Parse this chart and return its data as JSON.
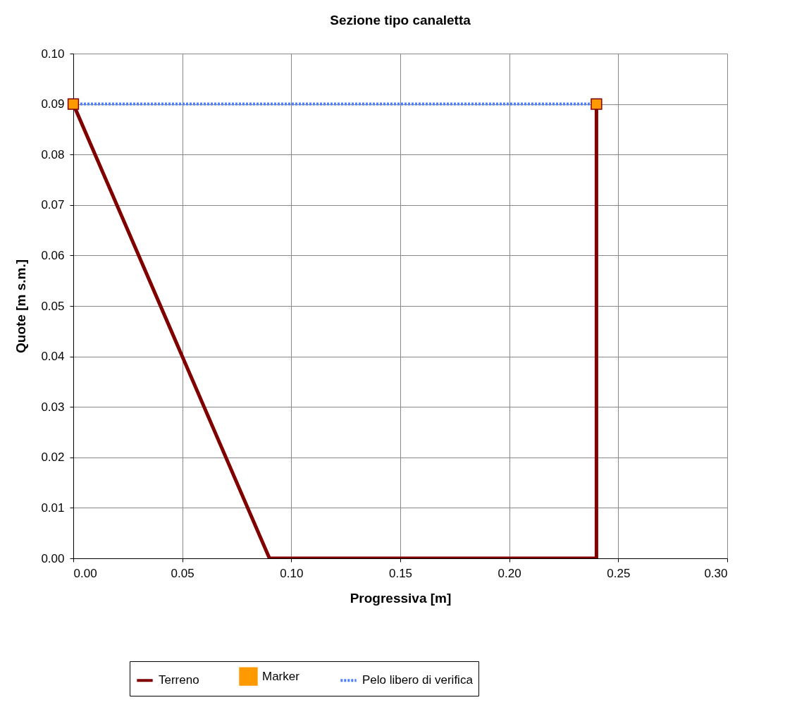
{
  "chart_data": {
    "type": "line",
    "title": "Sezione tipo canaletta",
    "xlabel": "Progressiva [m]",
    "ylabel": "Quote [m s.m.]",
    "xlim": [
      0,
      0.3
    ],
    "xticks": [
      {
        "value": 0,
        "label": "0.00"
      },
      {
        "value": 0.05,
        "label": "0.05"
      },
      {
        "value": 0.1,
        "label": "0.10"
      },
      {
        "value": 0.15,
        "label": "0.15"
      },
      {
        "value": 0.2,
        "label": "0.20"
      },
      {
        "value": 0.25,
        "label": "0.25"
      },
      {
        "value": 0.3,
        "label": "0.30"
      }
    ],
    "ylim": [
      0,
      0.1
    ],
    "yticks": [
      {
        "value": 0,
        "label": "0.00"
      },
      {
        "value": 0.01,
        "label": "0.01"
      },
      {
        "value": 0.02,
        "label": "0.02"
      },
      {
        "value": 0.03,
        "label": "0.03"
      },
      {
        "value": 0.04,
        "label": "0.04"
      },
      {
        "value": 0.05,
        "label": "0.05"
      },
      {
        "value": 0.06,
        "label": "0.06"
      },
      {
        "value": 0.07,
        "label": "0.07"
      },
      {
        "value": 0.08,
        "label": "0.08"
      },
      {
        "value": 0.09,
        "label": "0.09"
      },
      {
        "value": 0.1,
        "label": "0.10"
      }
    ],
    "grid": true,
    "legend": "bottom",
    "series": [
      {
        "name": "Terreno",
        "color": "#800000",
        "line_style": "solid",
        "marker": "none",
        "x": [
          0,
          0.09,
          0.24,
          0.24
        ],
        "values": [
          0.09,
          0,
          0,
          0.09
        ]
      },
      {
        "name": "Marker",
        "type": "scatter",
        "color": "#ff9900",
        "marker": "square",
        "x": [
          0,
          0.24
        ],
        "values": [
          0.09,
          0.09
        ]
      },
      {
        "name": "Pelo libero di verifica",
        "color": "#4d7fff",
        "line_style": "dotted",
        "marker": "none",
        "x": [
          0,
          0.24
        ],
        "values": [
          0.09,
          0.09
        ]
      }
    ]
  }
}
